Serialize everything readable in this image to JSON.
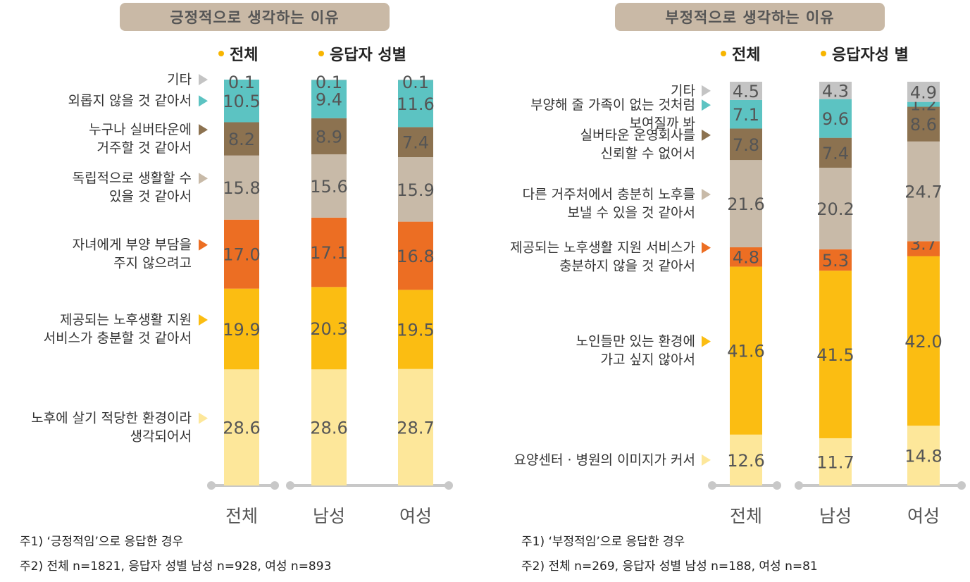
{
  "chart_data": [
    {
      "type": "bar",
      "stacked": true,
      "orientation": "vertical",
      "title": "긍정적으로 생각하는 이유",
      "legend": [
        "전체",
        "응답자 성별"
      ],
      "categories": [
        "전체",
        "남성",
        "여성"
      ],
      "ylim": [
        0,
        100
      ],
      "series": [
        {
          "name": "노후에 살기 적당한 환경이라 생각되어서",
          "color": "#fde79a",
          "values": [
            28.6,
            28.6,
            28.7
          ]
        },
        {
          "name": "제공되는 노후생활 지원 서비스가 충분할 것 같아서",
          "color": "#fbbd12",
          "values": [
            19.9,
            20.3,
            19.5
          ]
        },
        {
          "name": "자녀에게 부양 부담을 주지 않으려고",
          "color": "#ec6e23",
          "values": [
            17.0,
            17.1,
            16.8
          ]
        },
        {
          "name": "독립적으로 생활할 수 있을 것 같아서",
          "color": "#c8baa8",
          "values": [
            15.8,
            15.6,
            15.9
          ]
        },
        {
          "name": "누구나 실버타운에 거주할 것 같아서",
          "color": "#8c7250",
          "values": [
            8.2,
            8.9,
            7.4
          ]
        },
        {
          "name": "외롭지 않을 것 같아서",
          "color": "#5cc3c2",
          "values": [
            10.5,
            9.4,
            11.6
          ]
        },
        {
          "name": "기타",
          "color": "#c4c4c4",
          "values": [
            0.1,
            0.1,
            0.1
          ]
        }
      ],
      "series_labels": [
        [
          "노후에 살기 적당한 환경이라",
          "생각되어서"
        ],
        [
          "제공되는 노후생활 지원",
          "서비스가 충분할 것 같아서"
        ],
        [
          "자녀에게 부양 부담을",
          "주지 않으려고"
        ],
        [
          "독립적으로 생활할 수",
          "있을 것 같아서"
        ],
        [
          "누구나 실버타운에",
          "거주할 것 같아서"
        ],
        [
          "외롭지 않을 것 같아서"
        ],
        [
          "기타"
        ]
      ],
      "notes": [
        "주1) ‘긍정적임’으로 응답한 경우",
        "주2) 전체 n=1821, 응답자 성별 남성 n=928, 여성 n=893"
      ]
    },
    {
      "type": "bar",
      "stacked": true,
      "orientation": "vertical",
      "title": "부정적으로 생각하는 이유",
      "legend": [
        "전체",
        "응답자성 별"
      ],
      "categories": [
        "전체",
        "남성",
        "여성"
      ],
      "ylim": [
        0,
        100
      ],
      "series": [
        {
          "name": "요양센터·병원의 이미지가 커서",
          "color": "#fde79a",
          "values": [
            12.6,
            11.7,
            14.8
          ]
        },
        {
          "name": "노인들만 있는 환경에 가고 싶지 않아서",
          "color": "#fbbd12",
          "values": [
            41.6,
            41.5,
            42.0
          ]
        },
        {
          "name": "제공되는 노후생활 지원 서비스가 충분하지 않을 것 같아서",
          "color": "#ec6e23",
          "values": [
            4.8,
            5.3,
            3.7
          ]
        },
        {
          "name": "다른 거주처에서 충분히 노후를 보낼 수 있을 것 같아서",
          "color": "#c8baa8",
          "values": [
            21.6,
            20.2,
            24.7
          ]
        },
        {
          "name": "실버타운 운영회사를 신뢰할 수 없어서",
          "color": "#8c7250",
          "values": [
            7.8,
            7.4,
            8.6
          ]
        },
        {
          "name": "부양해 줄 가족이 없는 것처럼 보여질까 봐",
          "color": "#5cc3c2",
          "values": [
            7.1,
            9.6,
            1.2
          ]
        },
        {
          "name": "기타",
          "color": "#c4c4c4",
          "values": [
            4.5,
            4.3,
            4.9
          ]
        }
      ],
      "series_labels": [
        [
          "요양센터 · 병원의 이미지가 커서"
        ],
        [
          "노인들만 있는 환경에",
          "가고 싶지 않아서"
        ],
        [
          "제공되는 노후생활 지원 서비스가",
          "충분하지 않을 것 같아서"
        ],
        [
          "다른 거주처에서 충분히 노후를",
          "보낼 수 있을 것 같아서"
        ],
        [
          "실버타운 운영회사를",
          "신뢰할 수 없어서"
        ],
        [
          "부양해 줄 가족이 없는 것처럼",
          "보여질까 봐"
        ],
        [
          "기타"
        ]
      ],
      "notes": [
        "주1) ‘부정적임’으로 응답한 경우",
        "주2) 전체 n=269, 응답자 성별 남성 n=188, 여성 n=81"
      ]
    }
  ]
}
